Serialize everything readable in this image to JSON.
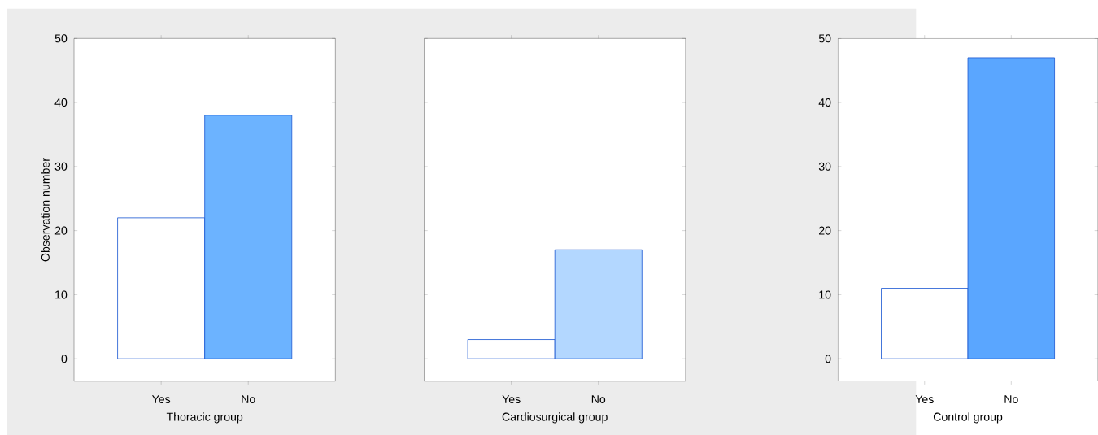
{
  "chart_data": [
    {
      "type": "bar",
      "xlabel": "Thoracic group",
      "ylabel": "Observation number",
      "categories": [
        "Yes",
        "No"
      ],
      "values": [
        22,
        38
      ],
      "colors": [
        "#ffffff",
        "#6cb3ff"
      ],
      "ylim": [
        -3.5,
        50
      ],
      "yticks": [
        0,
        10,
        20,
        30,
        40,
        50
      ]
    },
    {
      "type": "bar",
      "xlabel": "Cardiosurgical group",
      "categories": [
        "Yes",
        "No"
      ],
      "values": [
        3,
        17
      ],
      "colors": [
        "#ffffff",
        "#b3d7ff"
      ],
      "ylim": [
        -3.5,
        50
      ],
      "yticks": [
        0,
        10,
        20,
        30,
        40,
        50
      ],
      "tick_labels": "x"
    },
    {
      "type": "bar",
      "xlabel": "Control group",
      "categories": [
        "Yes",
        "No"
      ],
      "values": [
        11,
        47
      ],
      "colors": [
        "#ffffff",
        "#5aa6ff"
      ],
      "ylim": [
        -3.5,
        50
      ],
      "yticks": [
        0,
        10,
        20,
        30,
        40,
        50
      ]
    }
  ]
}
